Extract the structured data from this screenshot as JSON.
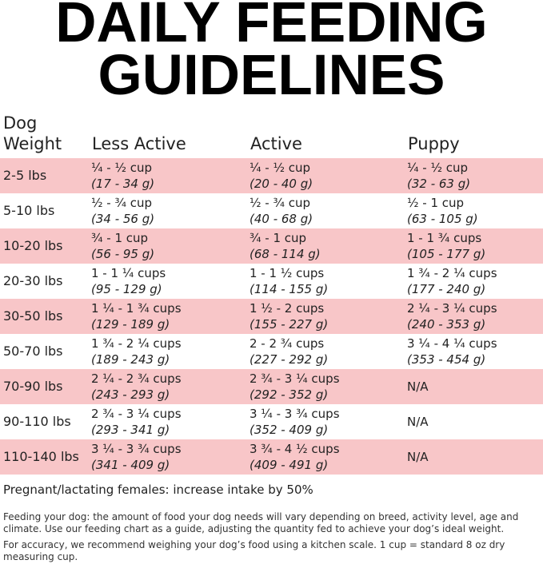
{
  "title": {
    "line1": "DAILY FEEDING",
    "line2": "GUIDELINES"
  },
  "table": {
    "headers": {
      "weight_line1": "Dog",
      "weight_line2": "Weight",
      "less_active": "Less Active",
      "active": "Active",
      "puppy": "Puppy"
    },
    "rows": [
      {
        "weight": "2-5 lbs",
        "less_cups": "¼ - ½ cup",
        "less_g": " (17 - 34 g)",
        "active_cups": "¼ - ½ cup",
        "active_g": "(20 - 40 g)",
        "puppy_cups": "¼ - ½ cup",
        "puppy_g": "(32 - 63 g)"
      },
      {
        "weight": "5-10 lbs",
        "less_cups": "½ - ¾ cup",
        "less_g": "(34 - 56 g)",
        "active_cups": "½ - ¾ cup",
        "active_g": "(40 - 68 g)",
        "puppy_cups": "½ - 1 cup",
        "puppy_g": "(63 - 105 g)"
      },
      {
        "weight": "10-20 lbs",
        "less_cups": "¾ - 1 cup",
        "less_g": "(56 - 95 g)",
        "active_cups": "¾ - 1 cup",
        "active_g": "(68 - 114 g)",
        "puppy_cups": "1 - 1 ¾ cups",
        "puppy_g": "(105 - 177 g)"
      },
      {
        "weight": "20-30 lbs",
        "less_cups": "1 - 1 ¼ cups",
        "less_g": "(95 - 129 g)",
        "active_cups": "1 - 1 ½ cups",
        "active_g": "(114 - 155 g)",
        "puppy_cups": "1 ¾ - 2 ¼ cups",
        "puppy_g": "(177 - 240 g)"
      },
      {
        "weight": "30-50 lbs",
        "less_cups": "1 ¼ - 1 ¾ cups",
        "less_g": "(129 - 189 g)",
        "active_cups": "1 ½ - 2 cups",
        "active_g": "(155 - 227 g)",
        "puppy_cups": "2 ¼ - 3 ¼ cups",
        "puppy_g": "(240 - 353 g)"
      },
      {
        "weight": "50-70 lbs",
        "less_cups": "1 ¾ - 2 ¼ cups",
        "less_g": "(189 - 243 g)",
        "active_cups": "2 - 2 ¾ cups",
        "active_g": "(227 - 292 g)",
        "puppy_cups": "3 ¼ - 4 ¼ cups",
        "puppy_g": "(353 - 454 g)"
      },
      {
        "weight": "70-90 lbs",
        "less_cups": "2 ¼ - 2 ¾ cups",
        "less_g": "(243 - 293 g)",
        "active_cups": "2 ¾ - 3 ¼ cups",
        "active_g": "(292 - 352 g)",
        "puppy_cups": "N/A",
        "puppy_g": ""
      },
      {
        "weight": "90-110 lbs",
        "less_cups": "2 ¾ - 3 ¼ cups",
        "less_g": "(293 - 341 g)",
        "active_cups": "3 ¼ - 3 ¾ cups",
        "active_g": "(352 - 409 g)",
        "puppy_cups": "N/A",
        "puppy_g": ""
      },
      {
        "weight": "110-140 lbs",
        "less_cups": "3 ¼ - 3 ¾ cups",
        "less_g": "(341 - 409 g)",
        "active_cups": "3 ¾ - 4 ½ cups",
        "active_g": "(409 - 491 g)",
        "puppy_cups": "N/A",
        "puppy_g": ""
      }
    ]
  },
  "notes": {
    "pregnant": "Pregnant/lactating females: increase intake by 50%",
    "feeding": "Feeding your dog: the amount of food your dog needs will vary depending on breed, activity level, age and climate. Use our feeding chart as a guide, adjusting the quantity fed to achieve your dog’s ideal weight.",
    "accuracy": "For accuracy, we recommend weighing your dog’s food using a kitchen scale. 1 cup = standard 8 oz dry measuring cup."
  },
  "colors": {
    "row_highlight": "#f8c6c8"
  }
}
